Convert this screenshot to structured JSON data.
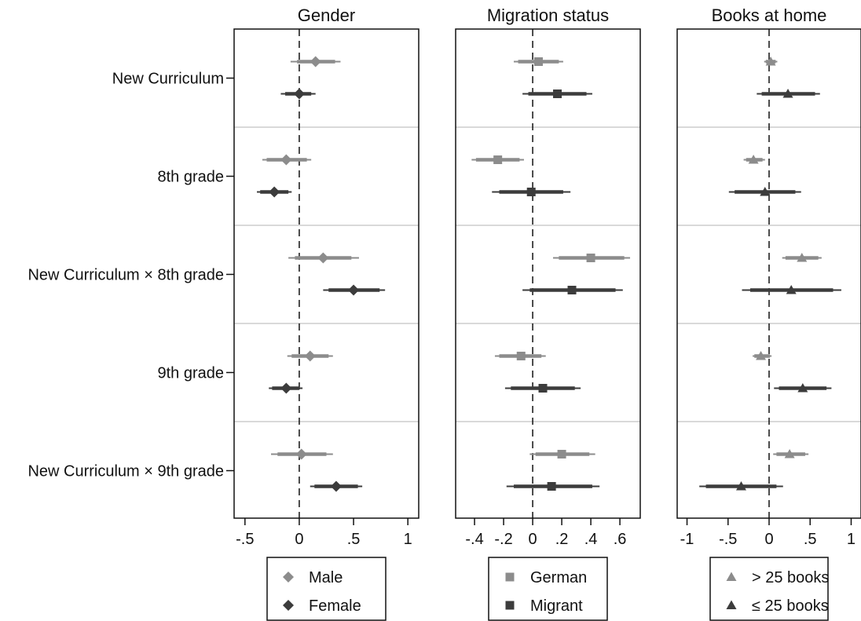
{
  "rows": [
    "New Curriculum",
    "8th grade",
    "New Curriculum × 8th grade",
    "9th grade",
    "New Curriculum × 9th grade"
  ],
  "colors": {
    "light": "#8c8c8c",
    "dark": "#3c3c3c",
    "separator": "#d9d9d9",
    "frame": "#111111"
  },
  "chart_data": [
    {
      "type": "scatter",
      "title": "Gender",
      "xlim": [
        -0.6,
        1.1
      ],
      "xticks": [
        -0.5,
        0,
        0.5,
        1
      ],
      "xtick_labels": [
        "-.5",
        "0",
        ".5",
        "1"
      ],
      "reference_line": 0,
      "marker": "diamond",
      "grid": false,
      "legend_position": "bottom",
      "series": [
        {
          "name": "Male",
          "color": "#8c8c8c",
          "points": [
            {
              "row": "New Curriculum",
              "est": 0.15,
              "ci95": [
                -0.08,
                0.38
              ],
              "ci90": [
                -0.02,
                0.33
              ]
            },
            {
              "row": "8th grade",
              "est": -0.12,
              "ci95": [
                -0.34,
                0.11
              ],
              "ci90": [
                -0.3,
                0.07
              ]
            },
            {
              "row": "New Curriculum × 8th grade",
              "est": 0.22,
              "ci95": [
                -0.1,
                0.55
              ],
              "ci90": [
                -0.04,
                0.48
              ]
            },
            {
              "row": "9th grade",
              "est": 0.1,
              "ci95": [
                -0.11,
                0.31
              ],
              "ci90": [
                -0.07,
                0.27
              ]
            },
            {
              "row": "New Curriculum × 9th grade",
              "est": 0.02,
              "ci95": [
                -0.26,
                0.31
              ],
              "ci90": [
                -0.2,
                0.25
              ]
            }
          ]
        },
        {
          "name": "Female",
          "color": "#3c3c3c",
          "points": [
            {
              "row": "New Curriculum",
              "est": 0.0,
              "ci95": [
                -0.17,
                0.15
              ],
              "ci90": [
                -0.13,
                0.11
              ]
            },
            {
              "row": "8th grade",
              "est": -0.23,
              "ci95": [
                -0.39,
                -0.07
              ],
              "ci90": [
                -0.36,
                -0.1
              ]
            },
            {
              "row": "New Curriculum × 8th grade",
              "est": 0.5,
              "ci95": [
                0.22,
                0.79
              ],
              "ci90": [
                0.27,
                0.74
              ]
            },
            {
              "row": "9th grade",
              "est": -0.12,
              "ci95": [
                -0.28,
                0.03
              ],
              "ci90": [
                -0.25,
                0.0
              ]
            },
            {
              "row": "New Curriculum × 9th grade",
              "est": 0.34,
              "ci95": [
                0.1,
                0.58
              ],
              "ci90": [
                0.14,
                0.54
              ]
            }
          ]
        }
      ]
    },
    {
      "type": "scatter",
      "title": "Migration status",
      "xlim": [
        -0.53,
        0.74
      ],
      "xticks": [
        -0.4,
        -0.2,
        0,
        0.2,
        0.4,
        0.6
      ],
      "xtick_labels": [
        "-.4",
        "-.2",
        "0",
        ".2",
        ".4",
        ".6"
      ],
      "reference_line": 0,
      "marker": "square",
      "grid": false,
      "legend_position": "bottom",
      "series": [
        {
          "name": "German",
          "color": "#8c8c8c",
          "points": [
            {
              "row": "New Curriculum",
              "est": 0.04,
              "ci95": [
                -0.13,
                0.21
              ],
              "ci90": [
                -0.1,
                0.18
              ]
            },
            {
              "row": "8th grade",
              "est": -0.24,
              "ci95": [
                -0.42,
                -0.06
              ],
              "ci90": [
                -0.39,
                -0.09
              ]
            },
            {
              "row": "New Curriculum × 8th grade",
              "est": 0.4,
              "ci95": [
                0.14,
                0.67
              ],
              "ci90": [
                0.18,
                0.63
              ]
            },
            {
              "row": "9th grade",
              "est": -0.08,
              "ci95": [
                -0.26,
                0.09
              ],
              "ci90": [
                -0.23,
                0.06
              ]
            },
            {
              "row": "New Curriculum × 9th grade",
              "est": 0.2,
              "ci95": [
                -0.02,
                0.43
              ],
              "ci90": [
                0.02,
                0.39
              ]
            }
          ]
        },
        {
          "name": "Migrant",
          "color": "#3c3c3c",
          "points": [
            {
              "row": "New Curriculum",
              "est": 0.17,
              "ci95": [
                -0.07,
                0.41
              ],
              "ci90": [
                -0.03,
                0.37
              ]
            },
            {
              "row": "8th grade",
              "est": -0.01,
              "ci95": [
                -0.28,
                0.26
              ],
              "ci90": [
                -0.23,
                0.21
              ]
            },
            {
              "row": "New Curriculum × 8th grade",
              "est": 0.27,
              "ci95": [
                -0.07,
                0.62
              ],
              "ci90": [
                -0.02,
                0.57
              ]
            },
            {
              "row": "9th grade",
              "est": 0.07,
              "ci95": [
                -0.19,
                0.33
              ],
              "ci90": [
                -0.15,
                0.29
              ]
            },
            {
              "row": "New Curriculum × 9th grade",
              "est": 0.13,
              "ci95": [
                -0.18,
                0.46
              ],
              "ci90": [
                -0.13,
                0.41
              ]
            }
          ]
        }
      ]
    },
    {
      "type": "scatter",
      "title": "Books at home",
      "xlim": [
        -1.12,
        1.12
      ],
      "xticks": [
        -1,
        -0.5,
        0,
        0.5,
        1
      ],
      "xtick_labels": [
        "-1",
        "-.5",
        "0",
        ".5",
        "1"
      ],
      "reference_line": 0,
      "marker": "triangle",
      "grid": false,
      "legend_position": "bottom",
      "series": [
        {
          "name": "> 25 books",
          "color": "#8c8c8c",
          "points": [
            {
              "row": "New Curriculum",
              "est": 0.02,
              "ci95": [
                -0.06,
                0.1
              ],
              "ci90": [
                -0.04,
                0.08
              ]
            },
            {
              "row": "8th grade",
              "est": -0.19,
              "ci95": [
                -0.31,
                -0.05
              ],
              "ci90": [
                -0.28,
                -0.08
              ]
            },
            {
              "row": "New Curriculum × 8th grade",
              "est": 0.4,
              "ci95": [
                0.16,
                0.64
              ],
              "ci90": [
                0.2,
                0.6
              ]
            },
            {
              "row": "9th grade",
              "est": -0.1,
              "ci95": [
                -0.2,
                0.03
              ],
              "ci90": [
                -0.18,
                0.01
              ]
            },
            {
              "row": "New Curriculum × 9th grade",
              "est": 0.25,
              "ci95": [
                0.05,
                0.48
              ],
              "ci90": [
                0.09,
                0.44
              ]
            }
          ]
        },
        {
          "name": "≤ 25 books",
          "color": "#3c3c3c",
          "points": [
            {
              "row": "New Curriculum",
              "est": 0.23,
              "ci95": [
                -0.15,
                0.62
              ],
              "ci90": [
                -0.09,
                0.56
              ]
            },
            {
              "row": "8th grade",
              "est": -0.05,
              "ci95": [
                -0.49,
                0.39
              ],
              "ci90": [
                -0.42,
                0.32
              ]
            },
            {
              "row": "New Curriculum × 8th grade",
              "est": 0.27,
              "ci95": [
                -0.33,
                0.88
              ],
              "ci90": [
                -0.23,
                0.78
              ]
            },
            {
              "row": "9th grade",
              "est": 0.41,
              "ci95": [
                0.06,
                0.76
              ],
              "ci90": [
                0.12,
                0.7
              ]
            },
            {
              "row": "New Curriculum × 9th grade",
              "est": -0.34,
              "ci95": [
                -0.85,
                0.17
              ],
              "ci90": [
                -0.77,
                0.09
              ]
            }
          ]
        }
      ]
    }
  ]
}
